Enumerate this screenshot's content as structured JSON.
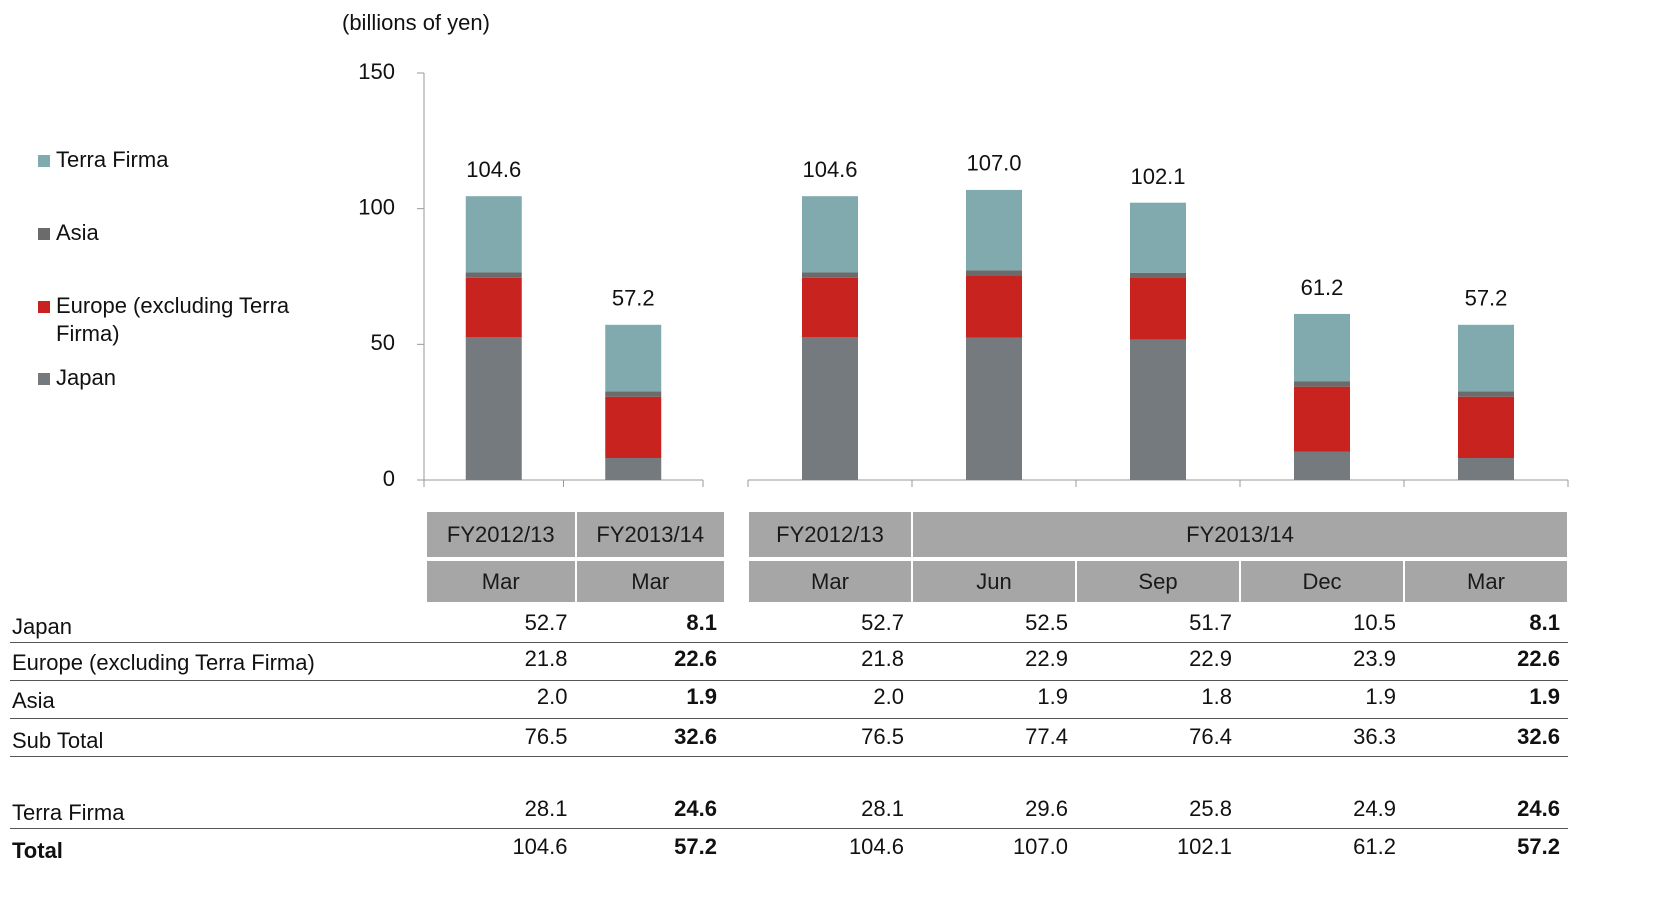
{
  "chart_data": {
    "type": "bar",
    "stacked": true,
    "ylabel": "(billions of yen)",
    "ylim": [
      0,
      150
    ],
    "yticks": [
      0,
      50,
      100,
      150
    ],
    "legend": "left",
    "series": [
      {
        "name": "Japan",
        "color": "#747a7d"
      },
      {
        "name": "Europe (excluding Terra Firma)",
        "color": "#c9231f"
      },
      {
        "name": "Asia",
        "color": "#6b6b6b"
      },
      {
        "name": "Terra Firma",
        "color": "#80aaae"
      }
    ],
    "subtotal_label": "Sub Total",
    "total_label": "Total",
    "panels": [
      {
        "groups": [
          {
            "label": "FY2012/13",
            "categories": [
              "Mar"
            ]
          },
          {
            "label": "FY2013/14",
            "categories": [
              "Mar"
            ]
          }
        ],
        "values": [
          [
            52.7,
            8.1
          ],
          [
            21.8,
            22.6
          ],
          [
            2.0,
            1.9
          ],
          [
            28.1,
            24.6
          ]
        ],
        "value_labels": [
          [
            "52.7",
            "8.1"
          ],
          [
            "21.8",
            "22.6"
          ],
          [
            "2.0",
            "1.9"
          ],
          [
            "28.1",
            "24.6"
          ]
        ],
        "subtotals": [
          76.5,
          32.6
        ],
        "totals": [
          104.6,
          57.2
        ]
      },
      {
        "groups": [
          {
            "label": "FY2012/13",
            "categories": [
              "Mar"
            ]
          },
          {
            "label": "FY2013/14",
            "categories": [
              "Jun",
              "Sep",
              "Dec",
              "Mar"
            ]
          }
        ],
        "values": [
          [
            52.7,
            52.5,
            51.7,
            10.5,
            8.1
          ],
          [
            21.8,
            22.9,
            22.9,
            23.9,
            22.6
          ],
          [
            2.0,
            1.9,
            1.8,
            1.9,
            1.9
          ],
          [
            28.1,
            29.6,
            25.8,
            24.9,
            24.6
          ]
        ],
        "value_labels": [
          [
            "52.7",
            "52.5",
            "51.7",
            "10.5",
            "8.1"
          ],
          [
            "21.8",
            "22.9",
            "22.9",
            "23.9",
            "22.6"
          ],
          [
            "2.0",
            "1.9",
            "1.8",
            "1.9",
            "1.9"
          ],
          [
            "28.1",
            "29.6",
            "25.8",
            "24.9",
            "24.6"
          ]
        ],
        "subtotals": [
          76.5,
          77.4,
          76.4,
          36.3,
          32.6
        ],
        "totals": [
          104.6,
          107.0,
          102.1,
          61.2,
          57.2
        ],
        "total_labels": [
          "104.6",
          "107.0",
          "102.1",
          "61.2",
          "57.2"
        ]
      }
    ]
  }
}
